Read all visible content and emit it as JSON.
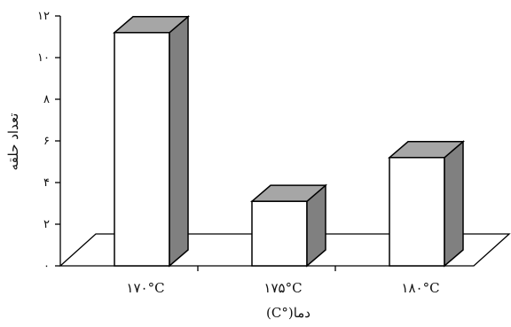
{
  "chart_data": {
    "type": "bar",
    "style": "3d",
    "categories": [
      "۱۷۰°C",
      "۱۷۵°C",
      "۱۸۰°C"
    ],
    "values": [
      11.2,
      3.1,
      5.2
    ],
    "xlabel": "دما(°C)",
    "ylabel": "تعداد حلقه",
    "ylim": [
      0,
      12
    ],
    "yticks": [
      0,
      2,
      4,
      6,
      8,
      10,
      12
    ],
    "ytick_labels": [
      "۰",
      "۲",
      "۴",
      "۶",
      "۸",
      "۱۰",
      "۱۲"
    ],
    "grid": false,
    "legend": "none",
    "colors": {
      "bar_front": "#ffffff",
      "bar_side": "#808080",
      "bar_top": "#a6a6a6",
      "stroke": "#000000"
    }
  }
}
